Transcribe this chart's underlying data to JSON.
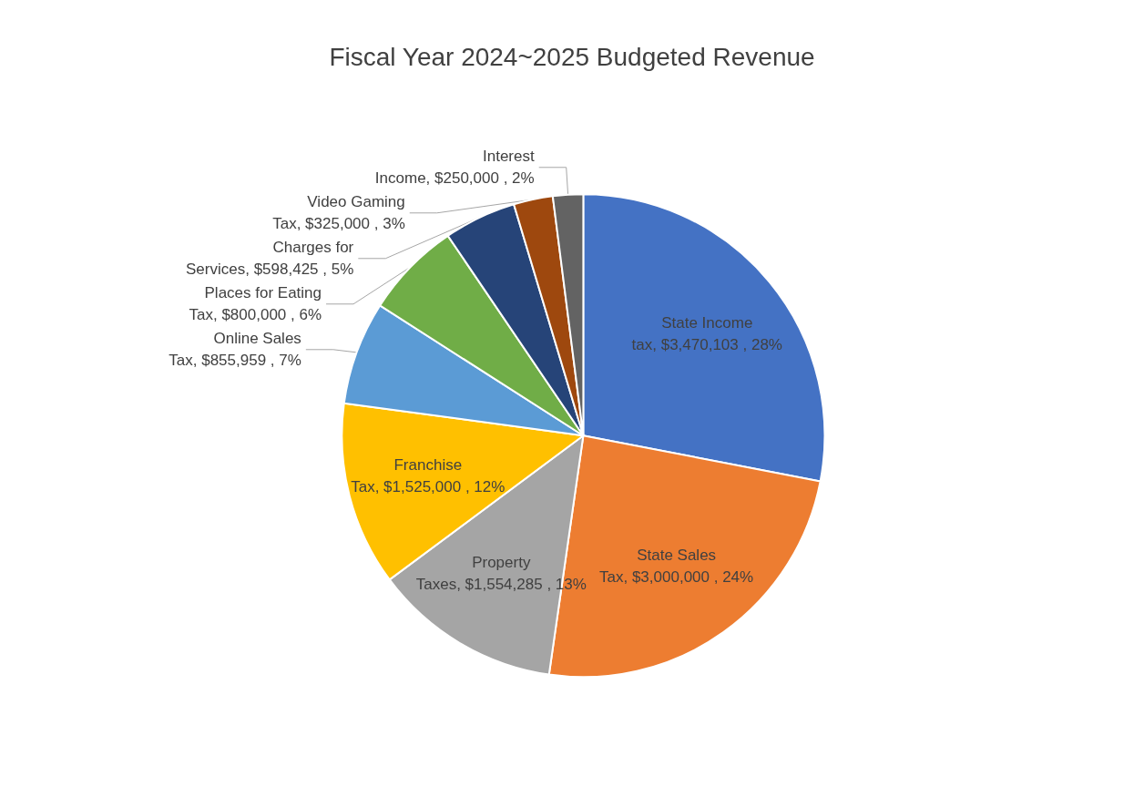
{
  "chart_data": {
    "type": "pie",
    "title": "Fiscal Year 2024~2025 Budgeted Revenue",
    "categories": [
      "State Income tax",
      "State Sales Tax",
      "Property Taxes",
      "Franchise Tax",
      "Online Sales Tax",
      "Places for Eating Tax",
      "Charges for Services",
      "Video Gaming Tax",
      "Interest Income"
    ],
    "values": [
      3470103,
      3000000,
      1554285,
      1525000,
      855959,
      800000,
      598425,
      325000,
      250000
    ],
    "value_labels": [
      "$3,470,103 , 28%",
      "$3,000,000 , 24%",
      "$1,554,285 , 13%",
      "$1,525,000 , 12%",
      "$855,959 , 7%",
      "$800,000 , 6%",
      "$598,425 , 5%",
      "$325,000 , 3%",
      "$250,000 , 2%"
    ],
    "colors": [
      "#4472c4",
      "#ed7d31",
      "#a5a5a5",
      "#ffc000",
      "#5b9bd5",
      "#70ad47",
      "#264478",
      "#9e480e",
      "#636363"
    ],
    "legend": false
  }
}
